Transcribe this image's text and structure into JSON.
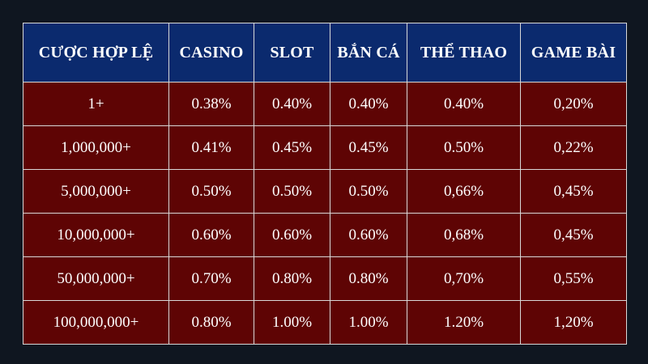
{
  "table": {
    "headers": [
      "CƯỢC HỢP LỆ",
      "CASINO",
      "SLOT",
      "BẮN CÁ",
      "THỂ THAO",
      "GAME BÀI"
    ],
    "rows": [
      [
        "1+",
        "0.38%",
        "0.40%",
        "0.40%",
        "0.40%",
        "0,20%"
      ],
      [
        "1,000,000+",
        "0.41%",
        "0.45%",
        "0.45%",
        "0.50%",
        "0,22%"
      ],
      [
        "5,000,000+",
        "0.50%",
        "0.50%",
        "0.50%",
        "0,66%",
        "0,45%"
      ],
      [
        "10,000,000+",
        "0.60%",
        "0.60%",
        "0.60%",
        "0,68%",
        "0,45%"
      ],
      [
        "50,000,000+",
        "0.70%",
        "0.80%",
        "0.80%",
        "0,70%",
        "0,55%"
      ],
      [
        "100,000,000+",
        "0.80%",
        "1.00%",
        "1.00%",
        "1.20%",
        "1,20%"
      ]
    ]
  },
  "colors": {
    "background": "#0f1620",
    "header_bg": "#0b2a6e",
    "row_bg": "#5e0404",
    "border": "#d8d8d8",
    "text": "#ffffff"
  }
}
